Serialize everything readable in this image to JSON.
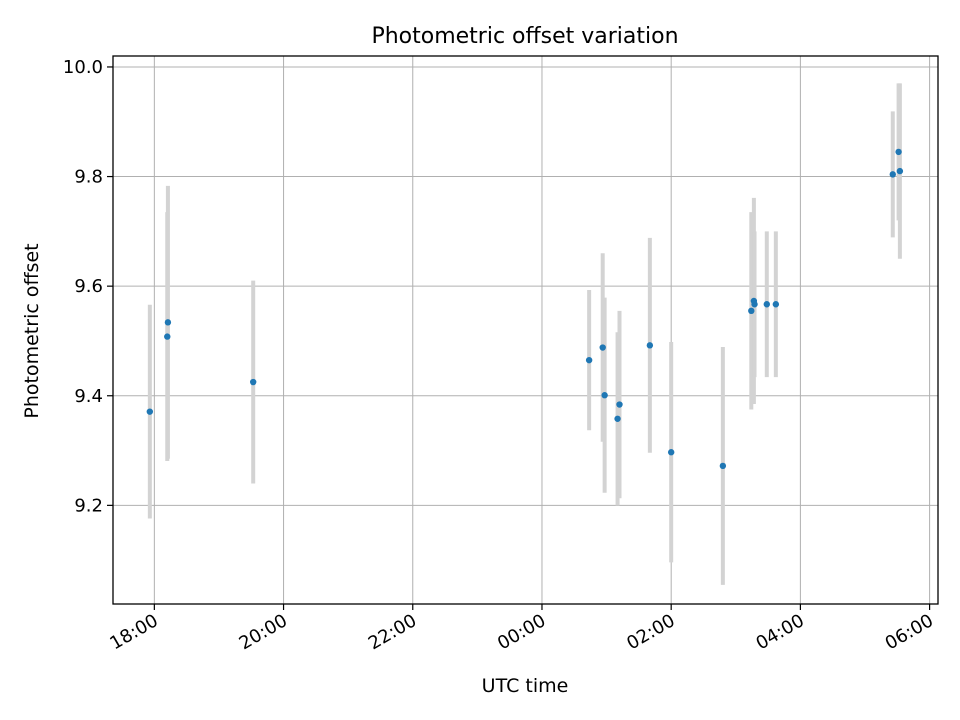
{
  "chart_data": {
    "type": "scatter",
    "title": "Photometric offset variation",
    "xlabel": "UTC time",
    "ylabel": "Photometric offset",
    "x_unit": "hours",
    "xlim": [
      -6.64,
      6.13
    ],
    "ylim": [
      9.02,
      10.02
    ],
    "grid": true,
    "x_ticks": [
      {
        "value": -6,
        "label": "18:00"
      },
      {
        "value": -4,
        "label": "20:00"
      },
      {
        "value": -2,
        "label": "22:00"
      },
      {
        "value": 0,
        "label": "00:00"
      },
      {
        "value": 2,
        "label": "02:00"
      },
      {
        "value": 4,
        "label": "04:00"
      },
      {
        "value": 6,
        "label": "06:00"
      }
    ],
    "y_ticks": [
      {
        "value": 9.2,
        "label": "9.2"
      },
      {
        "value": 9.4,
        "label": "9.4"
      },
      {
        "value": 9.6,
        "label": "9.6"
      },
      {
        "value": 9.8,
        "label": "9.8"
      },
      {
        "value": 10.0,
        "label": "10.0"
      }
    ],
    "series": [
      {
        "marker_color": "#1f77b4",
        "errorbar_color": "#d3d3d3",
        "points": [
          {
            "x": -6.07,
            "y": 9.371,
            "err": 0.195
          },
          {
            "x": -5.8,
            "y": 9.508,
            "err": 0.227
          },
          {
            "x": -5.79,
            "y": 9.534,
            "err": 0.249
          },
          {
            "x": -4.47,
            "y": 9.425,
            "err": 0.185
          },
          {
            "x": 0.73,
            "y": 9.465,
            "err": 0.128
          },
          {
            "x": 0.94,
            "y": 9.488,
            "err": 0.172
          },
          {
            "x": 0.97,
            "y": 9.401,
            "err": 0.178
          },
          {
            "x": 1.17,
            "y": 9.358,
            "err": 0.158
          },
          {
            "x": 1.2,
            "y": 9.384,
            "err": 0.171
          },
          {
            "x": 1.67,
            "y": 9.492,
            "err": 0.196
          },
          {
            "x": 2.0,
            "y": 9.297,
            "err": 0.201
          },
          {
            "x": 2.8,
            "y": 9.272,
            "err": 0.217
          },
          {
            "x": 3.24,
            "y": 9.555,
            "err": 0.18
          },
          {
            "x": 3.28,
            "y": 9.573,
            "err": 0.188
          },
          {
            "x": 3.29,
            "y": 9.567,
            "err": 0.133
          },
          {
            "x": 3.48,
            "y": 9.567,
            "err": 0.133
          },
          {
            "x": 3.62,
            "y": 9.567,
            "err": 0.133
          },
          {
            "x": 5.43,
            "y": 9.804,
            "err": 0.115
          },
          {
            "x": 5.52,
            "y": 9.845,
            "err": 0.125
          },
          {
            "x": 5.54,
            "y": 9.81,
            "err": 0.16
          }
        ]
      }
    ]
  }
}
